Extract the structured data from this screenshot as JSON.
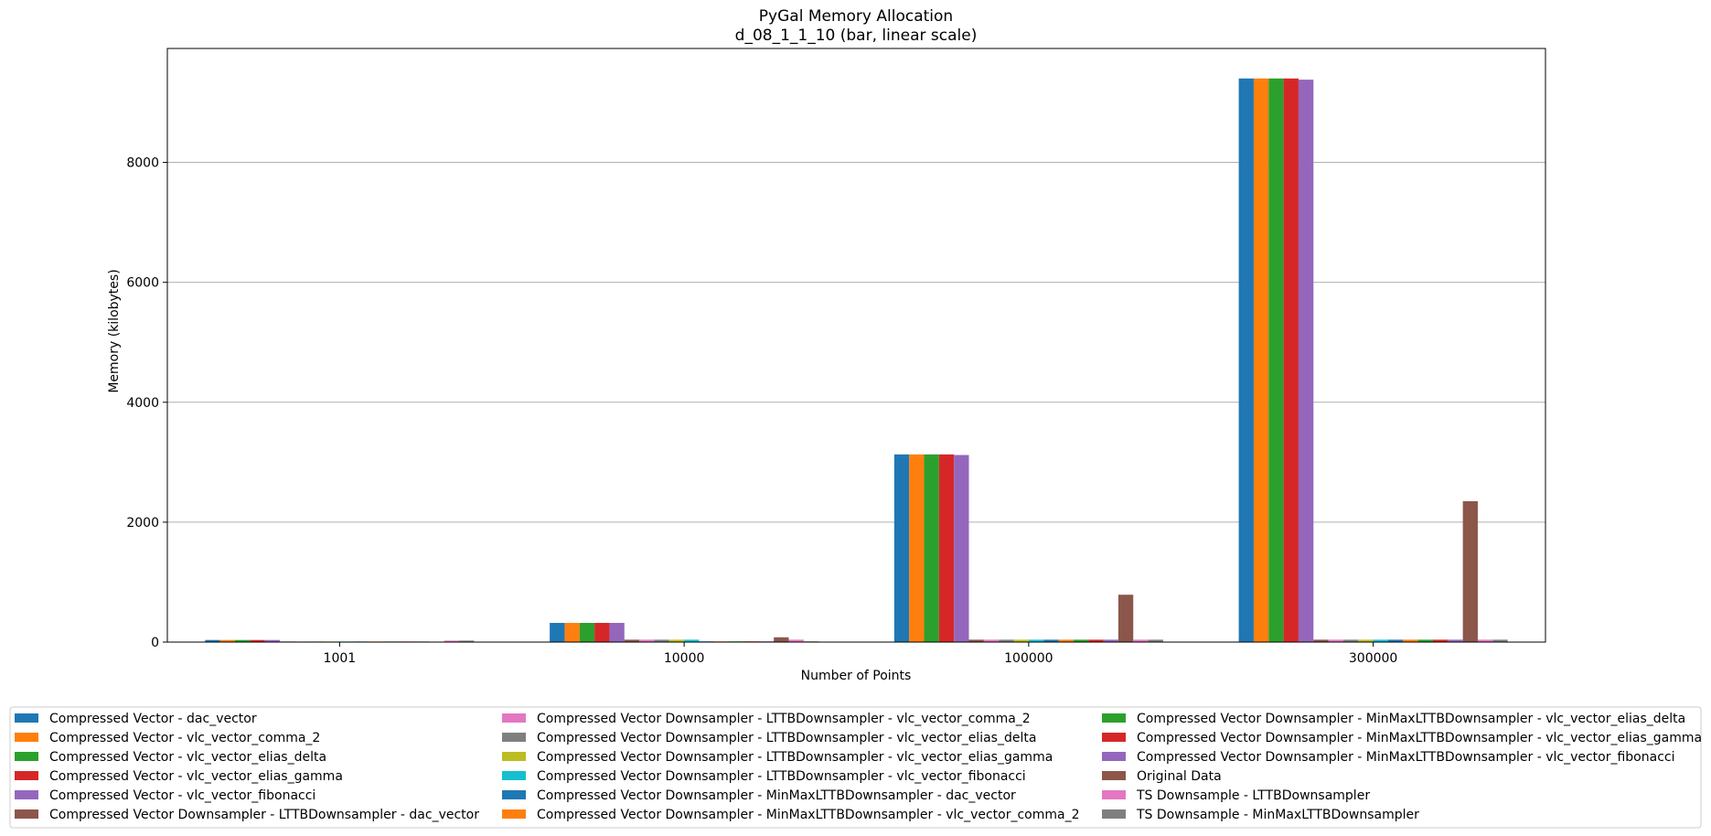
{
  "chart_data": {
    "type": "bar",
    "title": "PyGal Memory Allocation",
    "subtitle": "d_08_1_1_10 (bar, linear scale)",
    "xlabel": "Number of Points",
    "ylabel": "Memory (kilobytes)",
    "categories": [
      "1001",
      "10000",
      "100000",
      "300000"
    ],
    "ylim": [
      0,
      9900
    ],
    "yticks": [
      0,
      2000,
      4000,
      6000,
      8000
    ],
    "ytick_labels": [
      "0",
      "2000",
      "4000",
      "6000",
      "8000"
    ],
    "grid": "y",
    "legend_position": "bottom",
    "series": [
      {
        "name": "Compressed Vector - dac_vector",
        "color": "#1f77b4",
        "values": [
          35,
          320,
          3130,
          9400
        ]
      },
      {
        "name": "Compressed Vector - vlc_vector_comma_2",
        "color": "#ff7f0e",
        "values": [
          35,
          320,
          3130,
          9400
        ]
      },
      {
        "name": "Compressed Vector - vlc_vector_elias_delta",
        "color": "#2ca02c",
        "values": [
          35,
          320,
          3130,
          9400
        ]
      },
      {
        "name": "Compressed Vector - vlc_vector_elias_gamma",
        "color": "#d62728",
        "values": [
          35,
          320,
          3130,
          9400
        ]
      },
      {
        "name": "Compressed Vector - vlc_vector_fibonacci",
        "color": "#9467bd",
        "values": [
          35,
          320,
          3120,
          9380
        ]
      },
      {
        "name": "Compressed Vector Downsampler - LTTBDownsampler - dac_vector",
        "color": "#8c564b",
        "values": [
          10,
          40,
          40,
          40
        ]
      },
      {
        "name": "Compressed Vector Downsampler - LTTBDownsampler - vlc_vector_comma_2",
        "color": "#e377c2",
        "values": [
          10,
          40,
          40,
          40
        ]
      },
      {
        "name": "Compressed Vector Downsampler - LTTBDownsampler - vlc_vector_elias_delta",
        "color": "#7f7f7f",
        "values": [
          10,
          40,
          40,
          40
        ]
      },
      {
        "name": "Compressed Vector Downsampler - LTTBDownsampler - vlc_vector_elias_gamma",
        "color": "#bcbd22",
        "values": [
          10,
          40,
          40,
          40
        ]
      },
      {
        "name": "Compressed Vector Downsampler - LTTBDownsampler - vlc_vector_fibonacci",
        "color": "#17becf",
        "values": [
          10,
          40,
          40,
          40
        ]
      },
      {
        "name": "Compressed Vector Downsampler - MinMaxLTTBDownsampler - dac_vector",
        "color": "#1f77b4",
        "values": [
          10,
          12,
          40,
          40
        ]
      },
      {
        "name": "Compressed Vector Downsampler - MinMaxLTTBDownsampler - vlc_vector_comma_2",
        "color": "#ff7f0e",
        "values": [
          10,
          12,
          40,
          40
        ]
      },
      {
        "name": "Compressed Vector Downsampler - MinMaxLTTBDownsampler - vlc_vector_elias_delta",
        "color": "#2ca02c",
        "values": [
          10,
          12,
          40,
          40
        ]
      },
      {
        "name": "Compressed Vector Downsampler - MinMaxLTTBDownsampler - vlc_vector_elias_gamma",
        "color": "#d62728",
        "values": [
          10,
          12,
          40,
          40
        ]
      },
      {
        "name": "Compressed Vector Downsampler - MinMaxLTTBDownsampler - vlc_vector_fibonacci",
        "color": "#9467bd",
        "values": [
          10,
          12,
          40,
          40
        ]
      },
      {
        "name": "Original Data",
        "color": "#8c564b",
        "values": [
          8,
          80,
          790,
          2350
        ]
      },
      {
        "name": "TS Downsample - LTTBDownsampler",
        "color": "#e377c2",
        "values": [
          25,
          40,
          40,
          40
        ]
      },
      {
        "name": "TS Downsample - MinMaxLTTBDownsampler",
        "color": "#7f7f7f",
        "values": [
          25,
          12,
          40,
          40
        ]
      }
    ]
  }
}
